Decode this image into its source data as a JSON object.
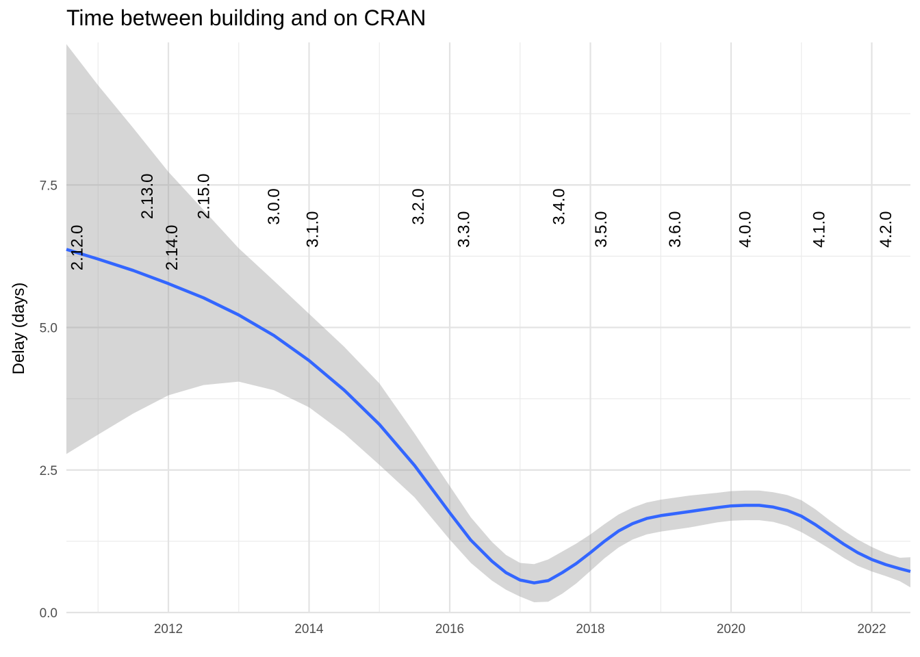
{
  "chart_data": {
    "type": "line",
    "title": "Time between building and on CRAN",
    "xlabel": "",
    "ylabel": "Delay (days)",
    "xlim": [
      2010.55,
      2022.55
    ],
    "ylim": [
      0,
      10
    ],
    "x_ticks": [
      2012,
      2014,
      2016,
      2018,
      2020,
      2022
    ],
    "x_tick_labels": [
      "2012",
      "2014",
      "2016",
      "2018",
      "2020",
      "2022"
    ],
    "y_ticks": [
      0,
      2.5,
      5,
      7.5
    ],
    "y_tick_labels": [
      "0.0",
      "2.5",
      "5.0",
      "7.5"
    ],
    "grid": true,
    "series": [
      {
        "type": "smooth",
        "color": "#3366ff",
        "x": [
          2010.55,
          2011.0,
          2011.5,
          2012.0,
          2012.5,
          2013.0,
          2013.5,
          2014.0,
          2014.5,
          2015.0,
          2015.5,
          2016.0,
          2016.3,
          2016.6,
          2016.8,
          2017.0,
          2017.2,
          2017.4,
          2017.6,
          2017.8,
          2018.0,
          2018.2,
          2018.4,
          2018.6,
          2018.8,
          2019.0,
          2019.4,
          2019.8,
          2020.0,
          2020.2,
          2020.4,
          2020.6,
          2020.8,
          2021.0,
          2021.2,
          2021.4,
          2021.6,
          2021.8,
          2022.0,
          2022.2,
          2022.4,
          2022.55
        ],
        "y": [
          6.37,
          6.2,
          6.0,
          5.77,
          5.52,
          5.22,
          4.86,
          4.42,
          3.9,
          3.3,
          2.58,
          1.75,
          1.27,
          0.9,
          0.7,
          0.57,
          0.52,
          0.56,
          0.7,
          0.86,
          1.05,
          1.25,
          1.43,
          1.56,
          1.65,
          1.7,
          1.77,
          1.84,
          1.87,
          1.88,
          1.88,
          1.85,
          1.79,
          1.69,
          1.54,
          1.37,
          1.2,
          1.05,
          0.93,
          0.84,
          0.77,
          0.72
        ],
        "lower": [
          2.78,
          3.12,
          3.49,
          3.81,
          3.99,
          4.05,
          3.9,
          3.6,
          3.14,
          2.59,
          2.02,
          1.28,
          0.87,
          0.56,
          0.4,
          0.28,
          0.18,
          0.19,
          0.33,
          0.51,
          0.73,
          0.95,
          1.14,
          1.28,
          1.37,
          1.42,
          1.49,
          1.58,
          1.61,
          1.62,
          1.62,
          1.59,
          1.52,
          1.41,
          1.27,
          1.12,
          0.96,
          0.82,
          0.72,
          0.64,
          0.55,
          0.44
        ],
        "upper": [
          9.97,
          9.25,
          8.5,
          7.73,
          7.06,
          6.39,
          5.82,
          5.24,
          4.66,
          4.02,
          3.14,
          2.22,
          1.67,
          1.24,
          1.01,
          0.87,
          0.85,
          0.93,
          1.07,
          1.21,
          1.37,
          1.55,
          1.72,
          1.84,
          1.93,
          1.98,
          2.05,
          2.1,
          2.13,
          2.14,
          2.14,
          2.11,
          2.06,
          1.97,
          1.81,
          1.62,
          1.44,
          1.28,
          1.15,
          1.04,
          0.96,
          0.97
        ]
      }
    ],
    "annotations": [
      {
        "label": "2.12.0",
        "x": 2010.7,
        "y": 6.0
      },
      {
        "label": "2.13.0",
        "x": 2011.7,
        "y": 6.9
      },
      {
        "label": "2.14.0",
        "x": 2012.05,
        "y": 6.0
      },
      {
        "label": "2.15.0",
        "x": 2012.5,
        "y": 6.9
      },
      {
        "label": "3.0.0",
        "x": 2013.5,
        "y": 6.8
      },
      {
        "label": "3.1.0",
        "x": 2014.05,
        "y": 6.4
      },
      {
        "label": "3.2.0",
        "x": 2015.55,
        "y": 6.8
      },
      {
        "label": "3.3.0",
        "x": 2016.2,
        "y": 6.4
      },
      {
        "label": "3.4.0",
        "x": 2017.55,
        "y": 6.8
      },
      {
        "label": "3.5.0",
        "x": 2018.15,
        "y": 6.4
      },
      {
        "label": "3.6.0",
        "x": 2019.2,
        "y": 6.4
      },
      {
        "label": "4.0.0",
        "x": 2020.2,
        "y": 6.4
      },
      {
        "label": "4.1.0",
        "x": 2021.25,
        "y": 6.4
      },
      {
        "label": "4.2.0",
        "x": 2022.2,
        "y": 6.4
      }
    ]
  }
}
